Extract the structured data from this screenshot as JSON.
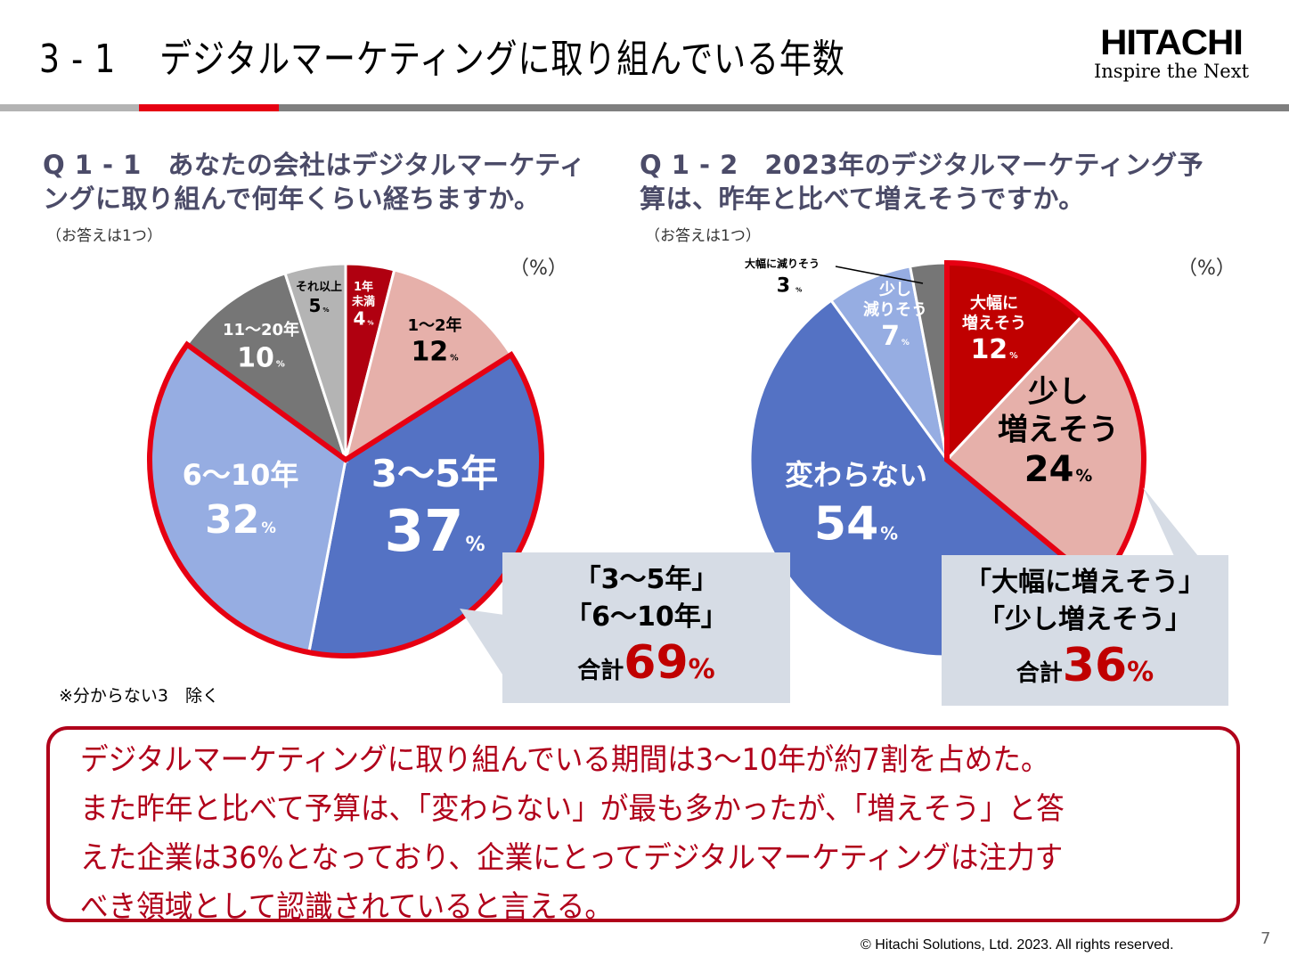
{
  "slide": {
    "title": "3 - 1　 デジタルマーケティングに取り組んでいる年数",
    "logo": {
      "brand": "HITACHI",
      "tagline": "Inspire the Next"
    },
    "footnote": "※分からない3　除く",
    "summary": "デジタルマーケティングに取り組んでいる期間は3～10年が約7割を占めた。\nまた昨年と比べて予算は、「変わらない」が最も多かったが、「増えそう」と答\nえた企業は36%となっており、企業にとってデジタルマーケティングは注力す\nべき領域として認識されていると言える。",
    "copyright": "© Hitachi Solutions, Ltd. 2023. All rights reserved.",
    "page_number": "7",
    "colors": {
      "band_gray": "#7f7f7f",
      "band_light": "#b3b3b3",
      "band_red": "#e60012",
      "highlight_outline": "#e60012",
      "accent_red": "#c00000",
      "callout_bg": "#d6dce5",
      "summary_red": "#b0001a"
    }
  },
  "q1": {
    "title_line1": "Q 1 - 1　あなたの会社はデジタルマーケティ",
    "title_line2": "ングに取り組んで何年くらい経ちますか。",
    "note": "（お答えは1つ）",
    "unit": "（%）",
    "callout": {
      "line1": "「3～5年」",
      "line2": "「6～10年」",
      "sum_label": "合計",
      "sum_value": "69",
      "sum_unit": "%"
    }
  },
  "q2": {
    "title_line1": "Q 1 - 2　2023年のデジタルマーケティング予",
    "title_line2": "算は、昨年と比べて増えそうですか。",
    "note": "（お答えは1つ）",
    "unit": "（%）",
    "callout": {
      "line1": "「大幅に増えそう」",
      "line2": "「少し増えそう」",
      "sum_label": "合計",
      "sum_value": "36",
      "sum_unit": "%"
    }
  },
  "chart_data": [
    {
      "type": "pie",
      "title": "Q1-1 デジタルマーケティングに取り組んで何年くらい経ちますか",
      "unit": "%",
      "start": "12 o'clock, clockwise",
      "slices": [
        {
          "label": "1年未満",
          "label_lines": [
            "1年",
            "未満"
          ],
          "value": 4,
          "color": "#b00010",
          "text_color": "#ffffff",
          "highlight": false
        },
        {
          "label": "1～2年",
          "label_lines": [
            "1～2年"
          ],
          "value": 12,
          "color": "#e6b0aa",
          "text_color": "#000000",
          "highlight": false
        },
        {
          "label": "3～5年",
          "label_lines": [
            "3～5年"
          ],
          "value": 37,
          "color": "#5472c4",
          "text_color": "#ffffff",
          "highlight": true
        },
        {
          "label": "6～10年",
          "label_lines": [
            "6～10年"
          ],
          "value": 32,
          "color": "#96ade2",
          "text_color": "#ffffff",
          "highlight": true
        },
        {
          "label": "11～20年",
          "label_lines": [
            "11～20年"
          ],
          "value": 10,
          "color": "#767676",
          "text_color": "#ffffff",
          "highlight": false
        },
        {
          "label": "それ以上",
          "label_lines": [
            "それ以上"
          ],
          "value": 5,
          "color": "#b4b4b4",
          "text_color": "#000000",
          "highlight": false
        }
      ]
    },
    {
      "type": "pie",
      "title": "Q1-2 2023年のデジタルマーケティング予算は、昨年と比べて増えそうですか",
      "unit": "%",
      "start": "12 o'clock, clockwise",
      "slices": [
        {
          "label": "大幅に増えそう",
          "label_lines": [
            "大幅に",
            "増えそう"
          ],
          "value": 12,
          "color": "#c00000",
          "text_color": "#ffffff",
          "highlight": true
        },
        {
          "label": "少し増えそう",
          "label_lines": [
            "少し",
            "増えそう"
          ],
          "value": 24,
          "color": "#e6b0aa",
          "text_color": "#000000",
          "highlight": true
        },
        {
          "label": "変わらない",
          "label_lines": [
            "変わらない"
          ],
          "value": 54,
          "color": "#5472c4",
          "text_color": "#ffffff",
          "highlight": false
        },
        {
          "label": "少し減りそう",
          "label_lines": [
            "少し",
            "減りそう"
          ],
          "value": 7,
          "color": "#96ade2",
          "text_color": "#ffffff",
          "highlight": false
        },
        {
          "label": "大幅に減りそう",
          "label_lines": [
            "大幅に減りそう"
          ],
          "value": 3,
          "color": "#767676",
          "text_color": "#000000",
          "highlight": false,
          "label_outside": true
        }
      ]
    }
  ]
}
